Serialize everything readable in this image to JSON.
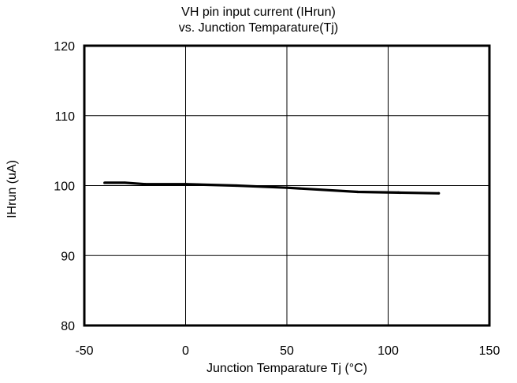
{
  "chart_data": {
    "type": "line",
    "title": [
      "VH pin input current (IHrun)",
      "vs. Junction Temparature(Tj)"
    ],
    "xlabel": "Junction Temparature Tj (°C)",
    "ylabel": "IHrun (uA)",
    "xlim": [
      -50,
      150
    ],
    "ylim": [
      80,
      120
    ],
    "xticks": [
      -50,
      0,
      50,
      100,
      150
    ],
    "yticks": [
      80,
      90,
      100,
      110,
      120
    ],
    "grid": true,
    "series": [
      {
        "color": "#000000",
        "points": [
          {
            "x": -40,
            "y": 100.4
          },
          {
            "x": -30,
            "y": 100.4
          },
          {
            "x": -20,
            "y": 100.2
          },
          {
            "x": 0,
            "y": 100.2
          },
          {
            "x": 25,
            "y": 100.0
          },
          {
            "x": 50,
            "y": 99.7
          },
          {
            "x": 85,
            "y": 99.1
          },
          {
            "x": 105,
            "y": 99.0
          },
          {
            "x": 125,
            "y": 98.9
          }
        ]
      }
    ]
  }
}
